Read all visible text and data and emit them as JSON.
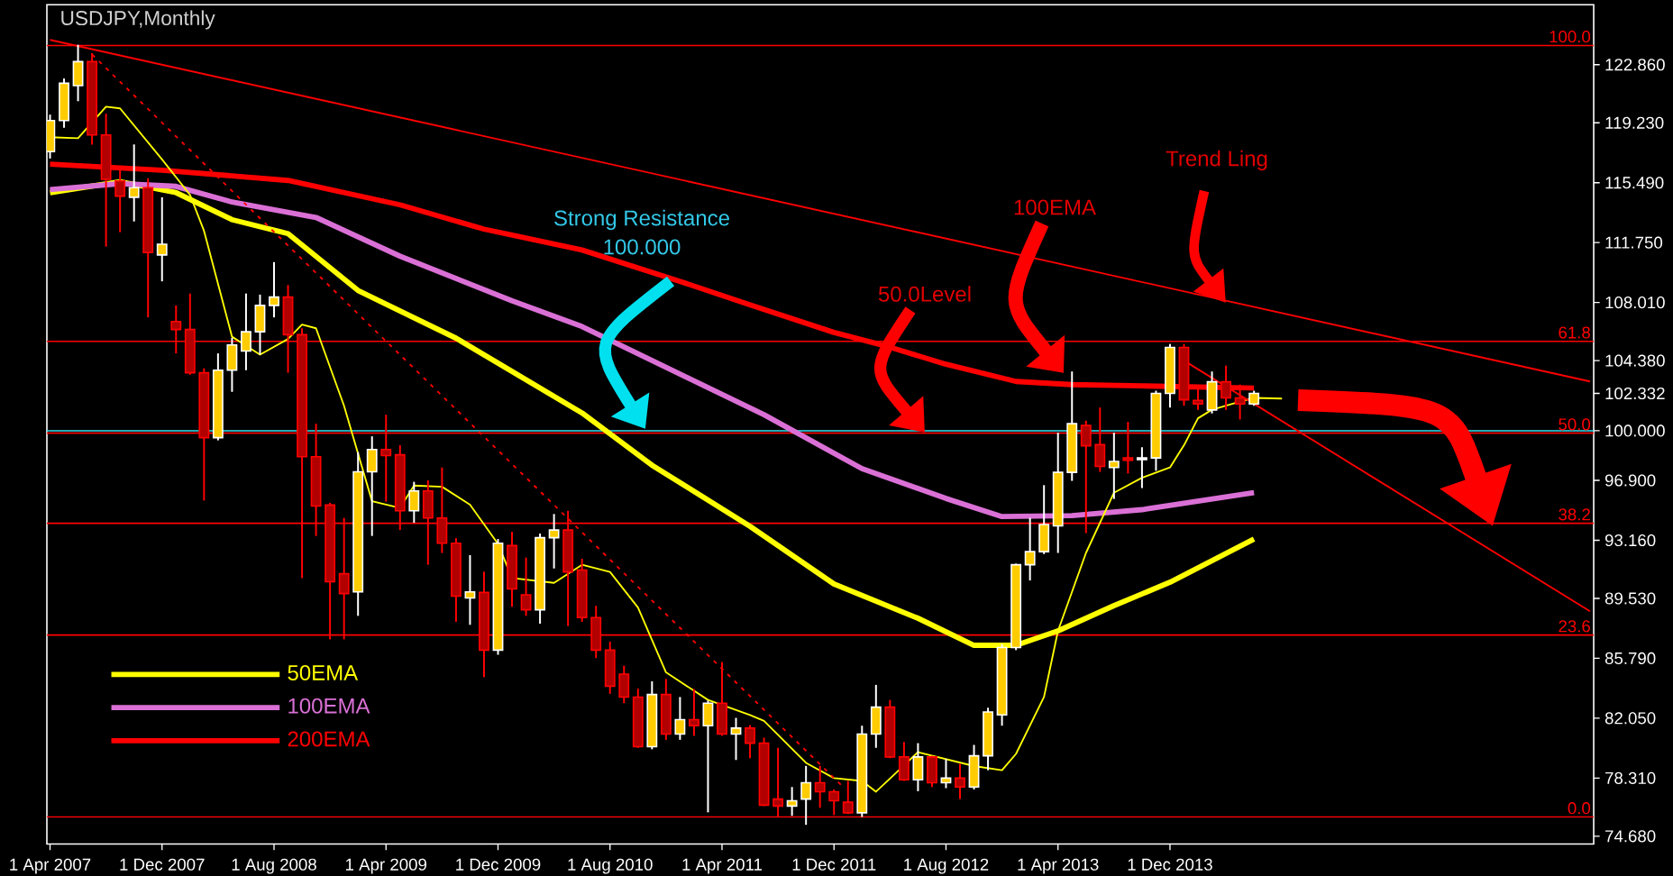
{
  "chart_data": {
    "type": "candlestick",
    "title": "USDJPY,Monthly",
    "x": [
      "2007-04",
      "2007-05",
      "2007-06",
      "2007-07",
      "2007-08",
      "2007-09",
      "2007-10",
      "2007-11",
      "2007-12",
      "2008-01",
      "2008-02",
      "2008-03",
      "2008-04",
      "2008-05",
      "2008-06",
      "2008-07",
      "2008-08",
      "2008-09",
      "2008-10",
      "2008-11",
      "2008-12",
      "2009-01",
      "2009-02",
      "2009-03",
      "2009-04",
      "2009-05",
      "2009-06",
      "2009-07",
      "2009-08",
      "2009-09",
      "2009-10",
      "2009-11",
      "2009-12",
      "2010-01",
      "2010-02",
      "2010-03",
      "2010-04",
      "2010-05",
      "2010-06",
      "2010-07",
      "2010-08",
      "2010-09",
      "2010-10",
      "2010-11",
      "2010-12",
      "2011-01",
      "2011-02",
      "2011-03",
      "2011-04",
      "2011-05",
      "2011-06",
      "2011-07",
      "2011-08",
      "2011-09",
      "2011-10",
      "2011-11",
      "2011-12",
      "2012-01",
      "2012-02",
      "2012-03",
      "2012-04",
      "2012-05",
      "2012-06",
      "2012-07",
      "2012-08",
      "2012-09",
      "2012-10",
      "2012-11",
      "2012-12",
      "2013-01",
      "2013-02",
      "2013-03",
      "2013-04",
      "2013-05",
      "2013-06",
      "2013-07",
      "2013-08",
      "2013-09",
      "2013-10",
      "2013-11",
      "2013-12",
      "2014-01",
      "2014-02",
      "2014-03",
      "2014-04",
      "2014-05",
      "2014-06"
    ],
    "ohlc": [
      [
        117.43,
        119.74,
        117.0,
        119.37
      ],
      [
        119.37,
        122.0,
        118.92,
        121.7
      ],
      [
        121.55,
        124.1,
        120.58,
        123.05
      ],
      [
        123.05,
        123.58,
        117.87,
        118.47
      ],
      [
        118.47,
        119.8,
        111.5,
        115.7
      ],
      [
        115.6,
        116.38,
        112.4,
        114.65
      ],
      [
        114.58,
        117.88,
        113.07,
        115.18
      ],
      [
        115.18,
        115.77,
        107.08,
        111.13
      ],
      [
        110.98,
        114.58,
        109.33,
        111.65
      ],
      [
        106.82,
        107.83,
        104.83,
        106.32
      ],
      [
        106.32,
        108.57,
        103.5,
        103.62
      ],
      [
        103.62,
        103.9,
        95.64,
        99.57
      ],
      [
        99.57,
        104.83,
        99.4,
        103.78
      ],
      [
        103.78,
        105.8,
        102.43,
        105.36
      ],
      [
        104.98,
        108.57,
        103.78,
        106.18
      ],
      [
        106.18,
        108.5,
        104.75,
        107.83
      ],
      [
        107.83,
        110.53,
        107.08,
        108.35
      ],
      [
        108.35,
        109.1,
        103.62,
        106.0
      ],
      [
        106.0,
        106.4,
        90.8,
        98.38
      ],
      [
        98.38,
        100.44,
        93.43,
        95.3
      ],
      [
        95.36,
        95.5,
        86.97,
        90.57
      ],
      [
        91.07,
        94.56,
        86.97,
        89.83
      ],
      [
        89.94,
        98.67,
        88.44,
        97.44
      ],
      [
        97.44,
        99.65,
        93.43,
        98.83
      ],
      [
        98.83,
        101.0,
        95.57,
        98.45
      ],
      [
        98.5,
        99.1,
        93.8,
        95.0
      ],
      [
        95.0,
        96.81,
        94.25,
        96.24
      ],
      [
        96.24,
        96.9,
        91.63,
        94.55
      ],
      [
        94.55,
        97.71,
        92.37,
        92.98
      ],
      [
        92.98,
        93.3,
        88.07,
        89.67
      ],
      [
        89.56,
        92.23,
        87.88,
        89.94
      ],
      [
        89.9,
        91.2,
        84.61,
        86.3
      ],
      [
        86.3,
        93.24,
        86.01,
        92.98
      ],
      [
        92.83,
        93.69,
        89.0,
        90.12
      ],
      [
        89.75,
        92.08,
        88.44,
        88.82
      ],
      [
        88.82,
        93.58,
        87.95,
        93.32
      ],
      [
        93.32,
        94.8,
        91.4,
        93.8
      ],
      [
        93.8,
        95.0,
        87.8,
        91.18
      ],
      [
        91.3,
        92.0,
        88.07,
        88.33
      ],
      [
        88.33,
        89.07,
        85.8,
        86.3
      ],
      [
        86.3,
        86.83,
        83.57,
        84.05
      ],
      [
        84.8,
        85.33,
        82.99,
        83.37
      ],
      [
        83.37,
        83.9,
        80.2,
        80.27
      ],
      [
        80.27,
        84.35,
        80.11,
        83.53
      ],
      [
        83.53,
        84.5,
        80.7,
        81.06
      ],
      [
        81.06,
        83.37,
        80.7,
        81.96
      ],
      [
        81.96,
        83.87,
        80.95,
        81.58
      ],
      [
        81.58,
        83.15,
        76.17,
        82.99
      ],
      [
        82.99,
        85.56,
        80.95,
        81.06
      ],
      [
        81.06,
        82.07,
        79.44,
        81.43
      ],
      [
        81.43,
        81.62,
        79.55,
        80.49
      ],
      [
        80.49,
        80.83,
        76.56,
        76.62
      ],
      [
        77.0,
        80.2,
        75.88,
        76.56
      ],
      [
        76.56,
        77.75,
        75.95,
        76.89
      ],
      [
        77.0,
        79.07,
        75.39,
        78.02
      ],
      [
        78.02,
        79.07,
        76.45,
        77.46
      ],
      [
        77.46,
        77.6,
        76.0,
        76.89
      ],
      [
        76.8,
        78.13,
        76.06,
        76.14
      ],
      [
        76.14,
        81.58,
        75.88,
        81.06
      ],
      [
        81.06,
        84.13,
        80.2,
        82.74
      ],
      [
        82.74,
        83.19,
        79.55,
        79.63
      ],
      [
        79.63,
        80.56,
        78.13,
        78.2
      ],
      [
        78.2,
        80.49,
        77.49,
        79.63
      ],
      [
        79.63,
        79.7,
        77.75,
        78.02
      ],
      [
        78.02,
        79.5,
        77.68,
        78.31
      ],
      [
        78.31,
        79.2,
        77.0,
        77.75
      ],
      [
        77.75,
        80.38,
        77.6,
        79.7
      ],
      [
        79.7,
        82.7,
        78.8,
        82.44
      ],
      [
        82.25,
        86.68,
        81.58,
        86.46
      ],
      [
        86.46,
        91.7,
        86.3,
        91.63
      ],
      [
        91.63,
        94.56,
        90.65,
        92.45
      ],
      [
        92.45,
        96.6,
        92.3,
        94.14
      ],
      [
        94.06,
        99.88,
        92.37,
        97.4
      ],
      [
        97.4,
        103.7,
        96.87,
        100.44
      ],
      [
        100.33,
        100.63,
        93.61,
        99.06
      ],
      [
        99.13,
        101.45,
        97.43,
        97.77
      ],
      [
        97.7,
        99.88,
        95.74,
        98.08
      ],
      [
        98.3,
        100.55,
        97.33,
        98.16
      ],
      [
        98.2,
        98.97,
        96.42,
        98.3
      ],
      [
        98.3,
        102.5,
        97.5,
        102.33
      ],
      [
        102.33,
        105.42,
        101.45,
        105.2
      ],
      [
        105.2,
        105.42,
        101.56,
        101.93
      ],
      [
        101.9,
        102.58,
        101.3,
        101.67
      ],
      [
        101.3,
        103.7,
        101.08,
        103.06
      ],
      [
        103.06,
        104.07,
        101.3,
        102.05
      ],
      [
        102.05,
        102.88,
        100.7,
        101.67
      ],
      [
        101.67,
        102.5,
        101.56,
        102.33
      ]
    ],
    "colors": [
      "#ffcc00",
      "#ffcc00",
      "#ffcc00",
      "#b20000",
      "#b20000",
      "#b20000",
      "#ffcc00",
      "#b20000",
      "#ffcc00",
      "#b20000",
      "#b20000",
      "#b20000",
      "#ffcc00",
      "#ffcc00",
      "#ffcc00",
      "#ffcc00",
      "#ffcc00",
      "#b20000",
      "#b20000",
      "#b20000",
      "#b20000",
      "#b20000",
      "#ffcc00",
      "#ffcc00",
      "#b20000",
      "#b20000",
      "#ffcc00",
      "#b20000",
      "#b20000",
      "#b20000",
      "#ffcc00",
      "#b20000",
      "#ffcc00",
      "#b20000",
      "#b20000",
      "#ffcc00",
      "#ffcc00",
      "#b20000",
      "#b20000",
      "#b20000",
      "#b20000",
      "#b20000",
      "#b20000",
      "#ffcc00",
      "#b20000",
      "#ffcc00",
      "#b20000",
      "#ffcc00",
      "#b20000",
      "#ffcc00",
      "#b20000",
      "#b20000",
      "#b20000",
      "#ffcc00",
      "#ffcc00",
      "#b20000",
      "#b20000",
      "#b20000",
      "#ffcc00",
      "#ffcc00",
      "#b20000",
      "#b20000",
      "#ffcc00",
      "#b20000",
      "#ffcc00",
      "#b20000",
      "#ffcc00",
      "#ffcc00",
      "#ffcc00",
      "#ffcc00",
      "#ffcc00",
      "#ffcc00",
      "#ffcc00",
      "#ffcc00",
      "#b20000",
      "#b20000",
      "#ffcc00",
      "#b20000",
      "#ffffff",
      "#ffcc00",
      "#ffcc00",
      "#b20000",
      "#b20000",
      "#ffcc00",
      "#b20000",
      "#b20000",
      "#ffcc00"
    ],
    "series": [
      {
        "type": "line",
        "name": "50EMA",
        "color": "#ffff00",
        "x": [
          "2007-04",
          "2007-09",
          "2008-01",
          "2008-05",
          "2008-09",
          "2009-02",
          "2009-09",
          "2010-06",
          "2010-11",
          "2011-06",
          "2011-12",
          "2012-06",
          "2012-10",
          "2013-01",
          "2013-04",
          "2013-08",
          "2013-12",
          "2014-06"
        ],
        "values": [
          114.87,
          115.55,
          114.87,
          113.18,
          112.31,
          108.76,
          105.78,
          101.11,
          97.85,
          94.03,
          90.43,
          88.29,
          86.6,
          86.6,
          87.5,
          89.08,
          90.54,
          93.24
        ]
      },
      {
        "type": "line",
        "name": "100EMA",
        "color": "#da70d6",
        "x": [
          "2007-04",
          "2007-09",
          "2008-01",
          "2008-05",
          "2008-11",
          "2009-05",
          "2010-01",
          "2010-06",
          "2011-07",
          "2012-02",
          "2012-08",
          "2012-12",
          "2013-05",
          "2013-10",
          "2014-06"
        ],
        "values": [
          115.06,
          115.43,
          115.26,
          114.28,
          113.32,
          110.9,
          108.12,
          106.51,
          101.0,
          97.63,
          95.77,
          94.64,
          94.7,
          95.07,
          96.13
        ]
      },
      {
        "type": "line",
        "name": "200EMA",
        "color": "#ff0000",
        "x": [
          "2007-04",
          "2007-12",
          "2008-09",
          "2009-05",
          "2009-11",
          "2010-06",
          "2011-01",
          "2011-06",
          "2011-12",
          "2012-04",
          "2012-08",
          "2013-01",
          "2013-05",
          "2013-10",
          "2014-06"
        ],
        "values": [
          116.65,
          116.27,
          115.63,
          114.11,
          112.59,
          111.29,
          109.33,
          107.86,
          106.14,
          105.22,
          104.15,
          103.08,
          102.88,
          102.8,
          102.66
        ]
      },
      {
        "type": "line",
        "color": "#ffff00",
        "x": [
          "2007-04",
          "2007-06",
          "2007-08",
          "2007-09",
          "2007-12",
          "2008-02",
          "2008-03",
          "2008-05",
          "2008-07",
          "2008-09",
          "2008-10",
          "2008-11",
          "2009-01",
          "2009-03",
          "2009-05",
          "2009-06",
          "2009-08",
          "2009-10",
          "2009-12",
          "2010-01",
          "2010-04",
          "2010-06",
          "2010-08",
          "2010-10",
          "2010-12",
          "2011-03",
          "2011-06",
          "2011-07",
          "2011-10",
          "2011-12",
          "2012-02",
          "2012-03",
          "2012-04",
          "2012-06",
          "2012-10",
          "2012-12",
          "2013-01",
          "2013-03",
          "2013-04",
          "2013-06",
          "2013-08",
          "2013-10",
          "2013-12",
          "2014-01",
          "2014-02",
          "2014-03",
          "2014-05",
          "2014-06",
          "2014-08"
        ],
        "values": [
          118.33,
          118.27,
          120.24,
          120.13,
          116.94,
          114.73,
          112.48,
          105.87,
          104.75,
          105.73,
          106.63,
          106.4,
          101.56,
          95.6,
          95.18,
          96.58,
          96.5,
          95.38,
          92.93,
          90.8,
          90.5,
          91.63,
          91.18,
          88.96,
          84.91,
          83.19,
          82.25,
          81.88,
          79.26,
          78.31,
          78.13,
          77.46,
          78.28,
          79.93,
          79.06,
          78.8,
          79.82,
          83.37,
          87.5,
          92.37,
          96.13,
          97.06,
          97.71,
          99.09,
          100.78,
          101.31,
          101.82,
          102.05,
          102.01
        ]
      },
      {
        "type": "line",
        "color": "#ff0000",
        "x": [
          "2007-04",
          "2016-06"
        ],
        "values": [
          124.41,
          103.08
        ]
      },
      {
        "type": "line",
        "color": "#ff0000",
        "line_style": "dashed",
        "x": [
          "2007-07",
          "2011-12-16"
        ],
        "values": [
          123.5,
          77.9
        ]
      },
      {
        "type": "line",
        "color": "#ff0000",
        "x": [
          "2014-01",
          "2016-06"
        ],
        "values": [
          104.38,
          88.73
        ]
      }
    ],
    "xlim": [
      "2007-03-25",
      "2016-06-09"
    ],
    "xticks": [
      {
        "value": "2007-04",
        "label": "1 Apr 2007"
      },
      {
        "value": "2007-12",
        "label": "1 Dec 2007"
      },
      {
        "value": "2008-08",
        "label": "1 Aug 2008"
      },
      {
        "value": "2009-04",
        "label": "1 Apr 2009"
      },
      {
        "value": "2009-12",
        "label": "1 Dec 2009"
      },
      {
        "value": "2010-08",
        "label": "1 Aug 2010"
      },
      {
        "value": "2011-04",
        "label": "1 Apr 2011"
      },
      {
        "value": "2011-12",
        "label": "1 Dec 2011"
      },
      {
        "value": "2012-08",
        "label": "1 Aug 2012"
      },
      {
        "value": "2013-04",
        "label": "1 Apr 2013"
      },
      {
        "value": "2013-12",
        "label": "1 Dec 2013"
      }
    ],
    "ylim": [
      74.19,
      126.6
    ],
    "yticks": [
      {
        "value": 74.68,
        "label": "74.680"
      },
      {
        "value": 78.31,
        "label": "78.310"
      },
      {
        "value": 82.05,
        "label": "82.050"
      },
      {
        "value": 85.79,
        "label": "85.790"
      },
      {
        "value": 89.53,
        "label": "89.530"
      },
      {
        "value": 93.16,
        "label": "93.160"
      },
      {
        "value": 96.9,
        "label": "96.900"
      },
      {
        "value": 100.0,
        "label": "100.000"
      },
      {
        "value": 102.332,
        "label": "102.332"
      },
      {
        "value": 104.38,
        "label": "104.380"
      },
      {
        "value": 108.01,
        "label": "108.010"
      },
      {
        "value": 111.75,
        "label": "111.750"
      },
      {
        "value": 115.49,
        "label": "115.490"
      },
      {
        "value": 119.23,
        "label": "119.230"
      },
      {
        "value": 122.86,
        "label": "122.860"
      }
    ],
    "ref_lines": [
      {
        "axis": "y",
        "value": 124.06,
        "color": "#ff0000"
      },
      {
        "axis": "y",
        "value": 105.58,
        "color": "#ff0000"
      },
      {
        "axis": "y",
        "value": 99.85,
        "color": "#ff0000"
      },
      {
        "axis": "y",
        "value": 94.22,
        "color": "#ff0000"
      },
      {
        "axis": "y",
        "value": 87.24,
        "color": "#ff0000"
      },
      {
        "axis": "y",
        "value": 75.88,
        "color": "#ff0000"
      },
      {
        "axis": "y",
        "value": 100.0,
        "color": "#33e0f0"
      }
    ],
    "annotations": [
      "Strong Resistance",
      "100.000",
      "50.0Level",
      "100EMA",
      "Trend Ling",
      {
        "text": "100.0",
        "x": "2016-06-09",
        "y": 124.06
      },
      {
        "text": "61.8",
        "x": "2016-06-09",
        "y": 105.58
      },
      {
        "text": "50.0",
        "x": "2016-06-09",
        "y": 99.85
      },
      {
        "text": "38.2",
        "x": "2016-06-09",
        "y": 94.22
      },
      {
        "text": "23.6",
        "x": "2016-06-09",
        "y": 87.24
      },
      {
        "text": "0.0",
        "x": "2016-06-09",
        "y": 75.88
      }
    ],
    "legend": "bottom left"
  }
}
